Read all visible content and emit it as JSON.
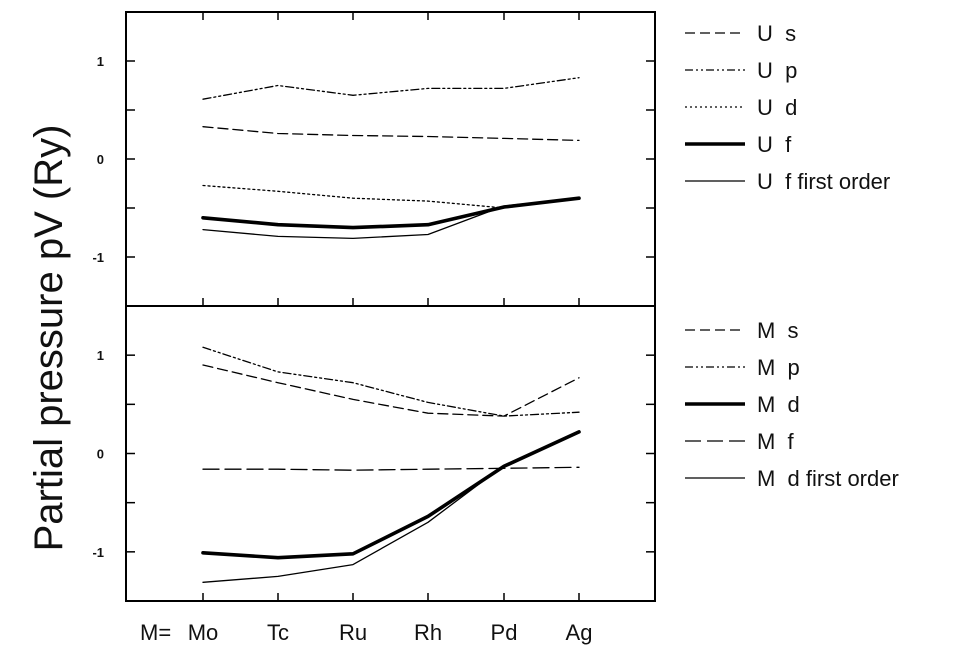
{
  "chart_data": {
    "type": "line",
    "ylabel": "Partial pressure pV (Ry)",
    "x_prefix": "M=",
    "categories": [
      "Mo",
      "Tc",
      "Ru",
      "Rh",
      "Pd",
      "Ag"
    ],
    "panels": [
      {
        "ylim": [
          -1.5,
          1.5
        ],
        "yticks": [
          -1,
          0,
          1
        ],
        "series": [
          {
            "name": "U  s",
            "dash": "dashed",
            "weight": "thin",
            "values": [
              0.33,
              0.26,
              0.24,
              0.23,
              0.21,
              0.19
            ]
          },
          {
            "name": "U  p",
            "dash": "dash-dot-dot",
            "weight": "thin",
            "values": [
              0.61,
              0.75,
              0.65,
              0.72,
              0.72,
              0.83
            ]
          },
          {
            "name": "U  d",
            "dash": "dotted",
            "weight": "thin",
            "values": [
              -0.27,
              -0.33,
              -0.4,
              -0.43,
              -0.5,
              -0.4
            ]
          },
          {
            "name": "U  f",
            "dash": "solid",
            "weight": "thick",
            "values": [
              -0.6,
              -0.67,
              -0.7,
              -0.67,
              -0.49,
              -0.4
            ]
          },
          {
            "name": "U  f first order",
            "dash": "solid",
            "weight": "thin",
            "values": [
              -0.72,
              -0.79,
              -0.81,
              -0.77,
              -0.48,
              -0.4
            ]
          }
        ]
      },
      {
        "ylim": [
          -1.5,
          1.5
        ],
        "yticks": [
          -1,
          0,
          1
        ],
        "series": [
          {
            "name": "M  s",
            "dash": "dashed",
            "weight": "thin",
            "values": [
              0.9,
              0.72,
              0.55,
              0.41,
              0.38,
              0.77
            ]
          },
          {
            "name": "M  p",
            "dash": "dash-dot-dot",
            "weight": "thin",
            "values": [
              1.08,
              0.83,
              0.72,
              0.52,
              0.38,
              0.42
            ]
          },
          {
            "name": "M  d",
            "dash": "solid",
            "weight": "thick",
            "values": [
              -1.01,
              -1.06,
              -1.02,
              -0.64,
              -0.13,
              0.22
            ]
          },
          {
            "name": "M  f",
            "dash": "long-dashed",
            "weight": "thin",
            "values": [
              -0.16,
              -0.16,
              -0.17,
              -0.16,
              -0.15,
              -0.14
            ]
          },
          {
            "name": "M  d first order",
            "dash": "solid",
            "weight": "thin",
            "values": [
              -1.31,
              -1.25,
              -1.13,
              -0.7,
              -0.12,
              0.22
            ]
          }
        ]
      }
    ]
  }
}
